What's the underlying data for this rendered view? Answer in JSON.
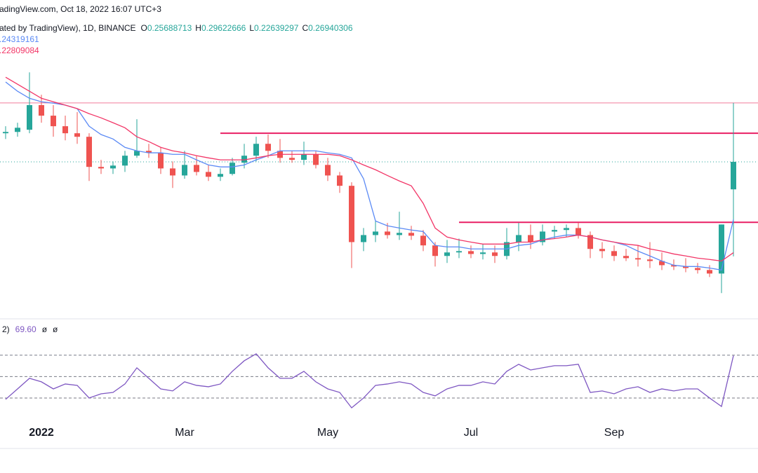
{
  "chart_data": [
    {
      "type": "candlestick",
      "header": "adingView.com, Oct 18, 2022 16:07 UTC+3",
      "subtitle": "ated by TradingView), 1D, BINANCE",
      "ohlc_keys": [
        "O",
        "H",
        "L",
        "C"
      ],
      "ohlc_value_labels": [
        "0.25688713",
        "0.29622666",
        "0.22639297",
        "0.26940306"
      ],
      "categories": [
        null,
        null,
        null,
        "2022",
        null,
        null,
        null,
        null,
        null,
        null,
        null,
        null,
        null,
        null,
        null,
        "Mar",
        null,
        null,
        null,
        null,
        null,
        null,
        null,
        null,
        null,
        null,
        null,
        "May",
        null,
        null,
        null,
        null,
        null,
        null,
        null,
        null,
        null,
        null,
        null,
        "Jul",
        null,
        null,
        null,
        null,
        null,
        null,
        null,
        null,
        null,
        null,
        null,
        "Sep",
        null,
        null,
        null,
        null,
        null,
        null,
        null,
        null,
        null,
        null
      ],
      "open": [
        0.2824,
        0.283,
        0.284,
        0.2952,
        0.2904,
        0.2856,
        0.2824,
        0.2808,
        0.2671,
        0.2664,
        0.2677,
        0.2722,
        0.2744,
        0.2735,
        0.2664,
        0.2632,
        0.268,
        0.2648,
        0.2626,
        0.2639,
        0.269,
        0.2722,
        0.2776,
        0.2744,
        0.2712,
        0.2703,
        0.2728,
        0.268,
        0.2632,
        0.2585,
        0.2329,
        0.2361,
        0.2377,
        0.2361,
        0.2371,
        0.2358,
        0.2314,
        0.2266,
        0.2282,
        0.2288,
        0.2275,
        0.2282,
        0.2266,
        0.2329,
        0.2361,
        0.2329,
        0.2377,
        0.2384,
        0.2393,
        0.2361,
        0.2298,
        0.2288,
        0.2266,
        0.2256,
        0.225,
        0.2243,
        0.2224,
        0.2218,
        0.2211,
        0.2202,
        0.2186,
        0.25688713
      ],
      "high": [
        0.2856,
        0.2872,
        0.3101,
        0.2999,
        0.2952,
        0.2904,
        0.292,
        0.2824,
        0.2703,
        0.2696,
        0.2744,
        0.2888,
        0.2776,
        0.276,
        0.2696,
        0.2744,
        0.2722,
        0.268,
        0.2664,
        0.2712,
        0.2776,
        0.2808,
        0.2818,
        0.2798,
        0.2744,
        0.2786,
        0.2744,
        0.2712,
        0.2648,
        0.2601,
        0.2393,
        0.2425,
        0.2416,
        0.2467,
        0.2403,
        0.2384,
        0.2329,
        0.2339,
        0.2345,
        0.2314,
        0.232,
        0.2314,
        0.2393,
        0.2416,
        0.2409,
        0.2409,
        0.2403,
        0.2409,
        0.2416,
        0.2377,
        0.2329,
        0.2314,
        0.2298,
        0.2314,
        0.2329,
        0.2282,
        0.225,
        0.2256,
        0.2234,
        0.2224,
        0.2409,
        0.29622666
      ],
      "low": [
        0.2798,
        0.2808,
        0.2824,
        0.2872,
        0.2808,
        0.2792,
        0.2776,
        0.2607,
        0.2639,
        0.2639,
        0.2648,
        0.2712,
        0.2712,
        0.2639,
        0.2575,
        0.2617,
        0.2632,
        0.2607,
        0.2607,
        0.2632,
        0.2664,
        0.2696,
        0.2712,
        0.269,
        0.269,
        0.268,
        0.2664,
        0.2607,
        0.2553,
        0.2211,
        0.2288,
        0.2329,
        0.2345,
        0.2339,
        0.2339,
        0.2288,
        0.2218,
        0.2234,
        0.2256,
        0.2256,
        0.225,
        0.2234,
        0.225,
        0.2288,
        0.2298,
        0.2314,
        0.2345,
        0.2352,
        0.2345,
        0.2256,
        0.2256,
        0.2243,
        0.2243,
        0.2218,
        0.2211,
        0.2202,
        0.2202,
        0.2192,
        0.2186,
        0.217,
        0.2097,
        0.22639297
      ],
      "close": [
        0.283,
        0.2849,
        0.2952,
        0.2904,
        0.2856,
        0.2824,
        0.2808,
        0.2671,
        0.2664,
        0.2677,
        0.2722,
        0.2744,
        0.2735,
        0.2664,
        0.2632,
        0.268,
        0.2648,
        0.2626,
        0.2639,
        0.269,
        0.2722,
        0.2776,
        0.2744,
        0.2712,
        0.2703,
        0.2728,
        0.268,
        0.2632,
        0.2585,
        0.2329,
        0.2361,
        0.2377,
        0.2361,
        0.2371,
        0.2358,
        0.2314,
        0.2266,
        0.2282,
        0.2288,
        0.2275,
        0.2282,
        0.2266,
        0.2329,
        0.2361,
        0.2329,
        0.2377,
        0.2384,
        0.2393,
        0.2361,
        0.2298,
        0.2288,
        0.2266,
        0.2256,
        0.225,
        0.2243,
        0.2224,
        0.2218,
        0.2211,
        0.2202,
        0.2186,
        0.2409,
        0.26940306
      ],
      "up_color": "#26a69a",
      "down_color": "#ef5350",
      "series": [
        {
          "color": "#5b8af5",
          "value_label": ".24319161",
          "values": [
            0.3057,
            0.3015,
            0.2983,
            0.2967,
            0.2961,
            0.2952,
            0.2936,
            0.2856,
            0.2818,
            0.2798,
            0.276,
            0.2744,
            0.2735,
            0.2735,
            0.2728,
            0.2728,
            0.2703,
            0.268,
            0.2671,
            0.2671,
            0.268,
            0.2703,
            0.2722,
            0.2744,
            0.2744,
            0.2744,
            0.2744,
            0.2735,
            0.2728,
            0.2712,
            0.2617,
            0.2425,
            0.2403,
            0.2393,
            0.2384,
            0.2377,
            0.2314,
            0.2307,
            0.2307,
            0.2298,
            0.2298,
            0.2298,
            0.2298,
            0.2314,
            0.232,
            0.2339,
            0.2352,
            0.2361,
            0.2361,
            0.2352,
            0.2339,
            0.2329,
            0.2314,
            0.2288,
            0.2266,
            0.2243,
            0.2224,
            0.2218,
            0.2218,
            0.2211,
            0.2202,
            0.24319161
          ]
        },
        {
          "color": "#f23667",
          "value_label": ".22809084",
          "values": [
            0.3079,
            0.3047,
            0.3015,
            0.2983,
            0.2967,
            0.2952,
            0.2936,
            0.2913,
            0.2894,
            0.2872,
            0.2849,
            0.2808,
            0.2786,
            0.276,
            0.2744,
            0.2735,
            0.2722,
            0.2712,
            0.2703,
            0.2703,
            0.2703,
            0.2712,
            0.2722,
            0.2728,
            0.2728,
            0.2728,
            0.2728,
            0.2728,
            0.2722,
            0.2703,
            0.268,
            0.2658,
            0.2632,
            0.2607,
            0.2585,
            0.2505,
            0.2393,
            0.2352,
            0.2339,
            0.2329,
            0.232,
            0.232,
            0.232,
            0.2329,
            0.2329,
            0.2339,
            0.2345,
            0.2352,
            0.2361,
            0.2352,
            0.2339,
            0.2329,
            0.232,
            0.2314,
            0.2298,
            0.2288,
            0.2275,
            0.2266,
            0.2256,
            0.225,
            0.2243,
            0.22809084
          ]
        }
      ],
      "levels": [
        {
          "value": 0.2962,
          "color": "#f27c9a"
        },
        {
          "value": 0.2824,
          "from": 18,
          "color": "#e91e63"
        },
        {
          "value": 0.2419,
          "from": 38,
          "color": "#e91e63"
        }
      ],
      "ylim": [
        0.198,
        0.343
      ]
    },
    {
      "type": "line",
      "header": "2)",
      "value_label": "69.60",
      "flags": [
        "ø",
        "ø"
      ],
      "color": "#7e57c2",
      "values": [
        28.7,
        38.5,
        48.4,
        45.1,
        38.5,
        43.1,
        41.8,
        30,
        33.9,
        35.2,
        43.1,
        58.2,
        48.4,
        38.5,
        36.6,
        45.1,
        41.8,
        40.5,
        43.1,
        54.9,
        64.8,
        71.3,
        58.2,
        48.4,
        48.4,
        54.9,
        45.1,
        38.5,
        35.2,
        20.8,
        30,
        41.8,
        43.1,
        45.1,
        43.1,
        35.2,
        32,
        38.5,
        41.8,
        41.8,
        45.1,
        43.1,
        54.9,
        61.5,
        56.2,
        58.2,
        60.2,
        60.2,
        61.5,
        35.2,
        36.6,
        33.9,
        38.5,
        40.5,
        35.2,
        38.5,
        36.6,
        38.5,
        38.5,
        30,
        22.1,
        69.6
      ],
      "levels": [
        70,
        50,
        30
      ],
      "ylim": [
        9,
        104
      ]
    }
  ]
}
